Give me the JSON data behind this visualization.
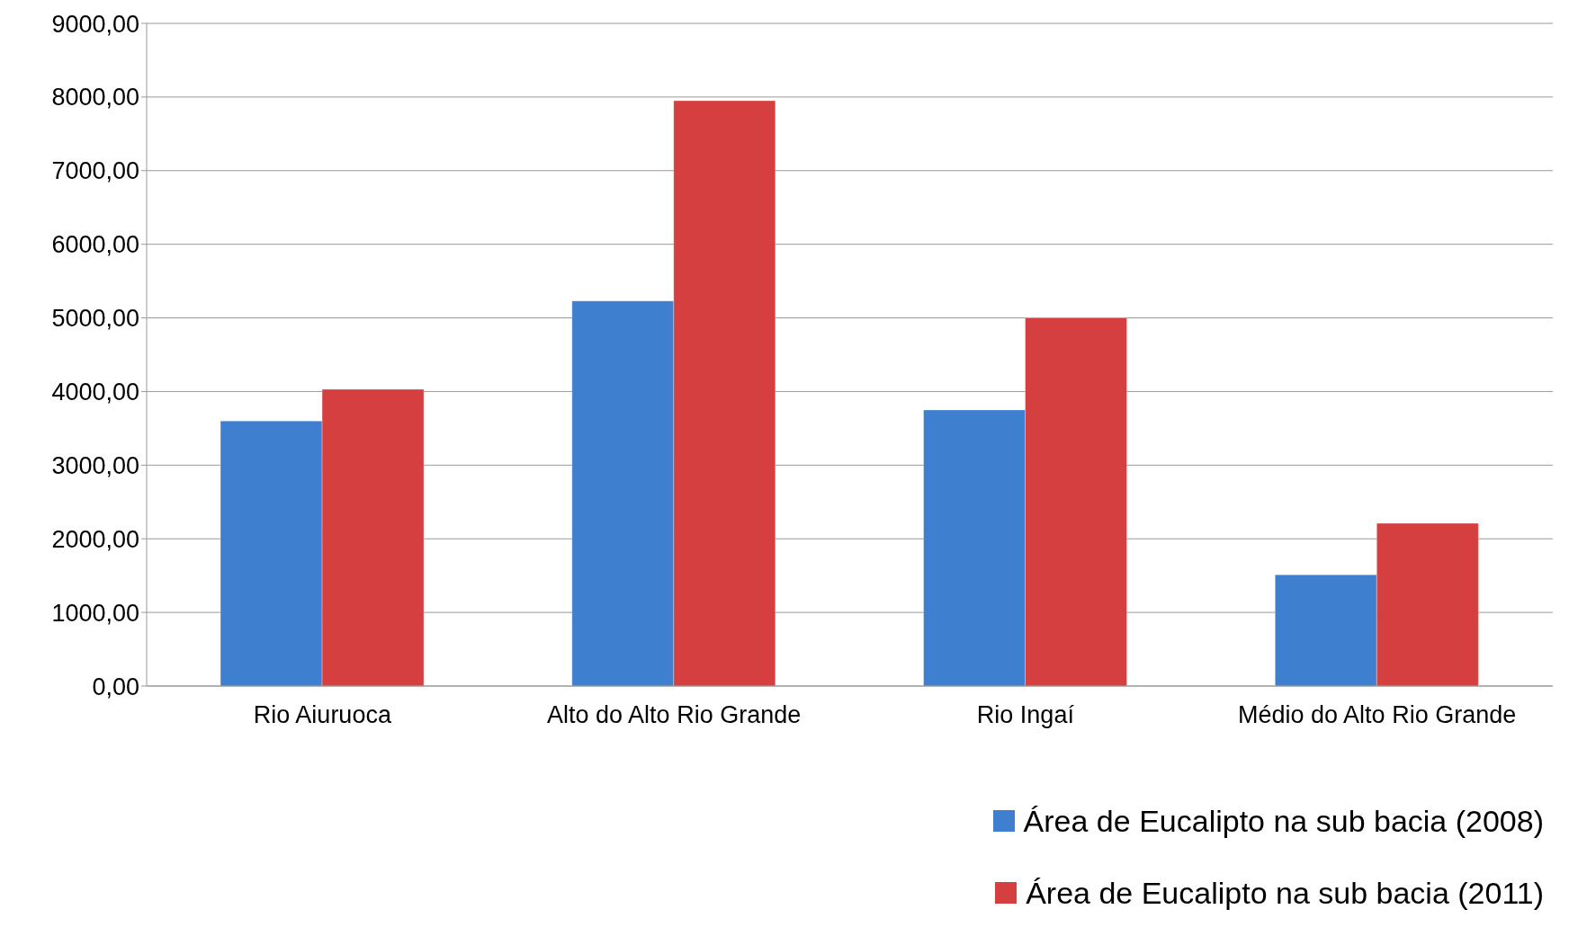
{
  "chart_data": {
    "type": "bar",
    "categories": [
      "Rio Aiuruoca",
      "Alto do Alto Rio Grande",
      "Rio Ingaí",
      "Médio do Alto Rio Grande"
    ],
    "series": [
      {
        "name": "Área de Eucalipto na sub bacia (2008)",
        "color": "#3f7fcf",
        "values": [
          3600,
          5230,
          3750,
          1510
        ]
      },
      {
        "name": "Área de Eucalipto na sub bacia (2011)",
        "color": "#d53f3f",
        "values": [
          4030,
          7950,
          5000,
          2210
        ]
      }
    ],
    "ylim": [
      0,
      9000
    ],
    "yticks": [
      {
        "value": 0,
        "label": "0,00"
      },
      {
        "value": 1000,
        "label": "1000,00"
      },
      {
        "value": 2000,
        "label": "2000,00"
      },
      {
        "value": 3000,
        "label": "3000,00"
      },
      {
        "value": 4000,
        "label": "4000,00"
      },
      {
        "value": 5000,
        "label": "5000,00"
      },
      {
        "value": 6000,
        "label": "6000,00"
      },
      {
        "value": 7000,
        "label": "7000,00"
      },
      {
        "value": 8000,
        "label": "8000,00"
      },
      {
        "value": 9000,
        "label": "9000,00"
      }
    ],
    "grid": "y",
    "legend": "bottom right"
  }
}
